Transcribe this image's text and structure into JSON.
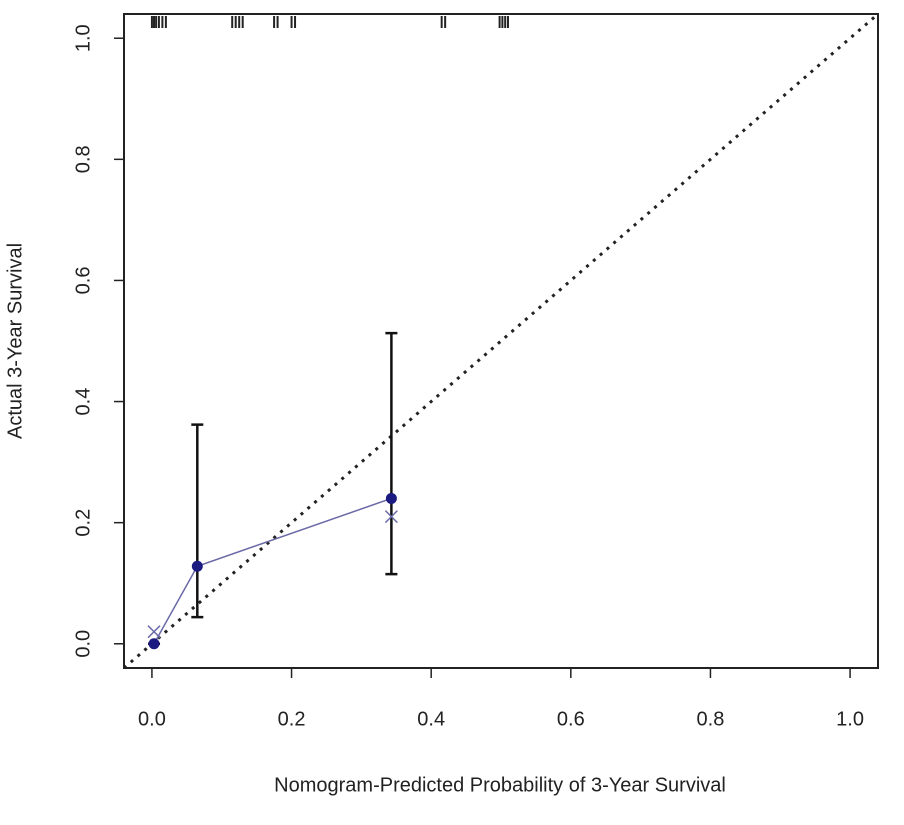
{
  "chart_data": {
    "type": "calibration",
    "x_label": "Nomogram-Predicted Probability of 3-Year Survival",
    "y_label": "Actual 3-Year Survival",
    "xlim": [
      -0.04,
      1.04
    ],
    "ylim": [
      -0.04,
      1.04
    ],
    "xticks": [
      {
        "value": 0,
        "label": "0.0"
      },
      0.2,
      0.4,
      0.6,
      0.8,
      {
        "value": 1,
        "label": "1.0"
      }
    ],
    "yticks": [
      {
        "value": 0,
        "label": "0.0"
      },
      0.2,
      0.4,
      0.6,
      0.8,
      {
        "value": 1,
        "label": "1.0"
      }
    ],
    "observed": {
      "color": "#1a1a80",
      "line_color": "#6a6aa8",
      "x": [
        0.003,
        0.065,
        0.343
      ],
      "values": [
        0.0,
        0.128,
        0.24
      ],
      "lower": [
        0.0,
        0.044,
        0.115
      ],
      "upper": [
        0.0,
        0.362,
        0.513
      ]
    },
    "corrected": {
      "color": "#6a6aa8",
      "x": [
        0.003,
        0.343
      ],
      "values": [
        0.02,
        0.21
      ]
    },
    "rug": [
      0.0,
      0.003,
      0.006,
      0.01,
      0.015,
      0.02,
      0.115,
      0.12,
      0.125,
      0.13,
      0.175,
      0.18,
      0.2,
      0.205,
      0.415,
      0.42,
      0.498,
      0.502,
      0.506,
      0.51
    ]
  }
}
